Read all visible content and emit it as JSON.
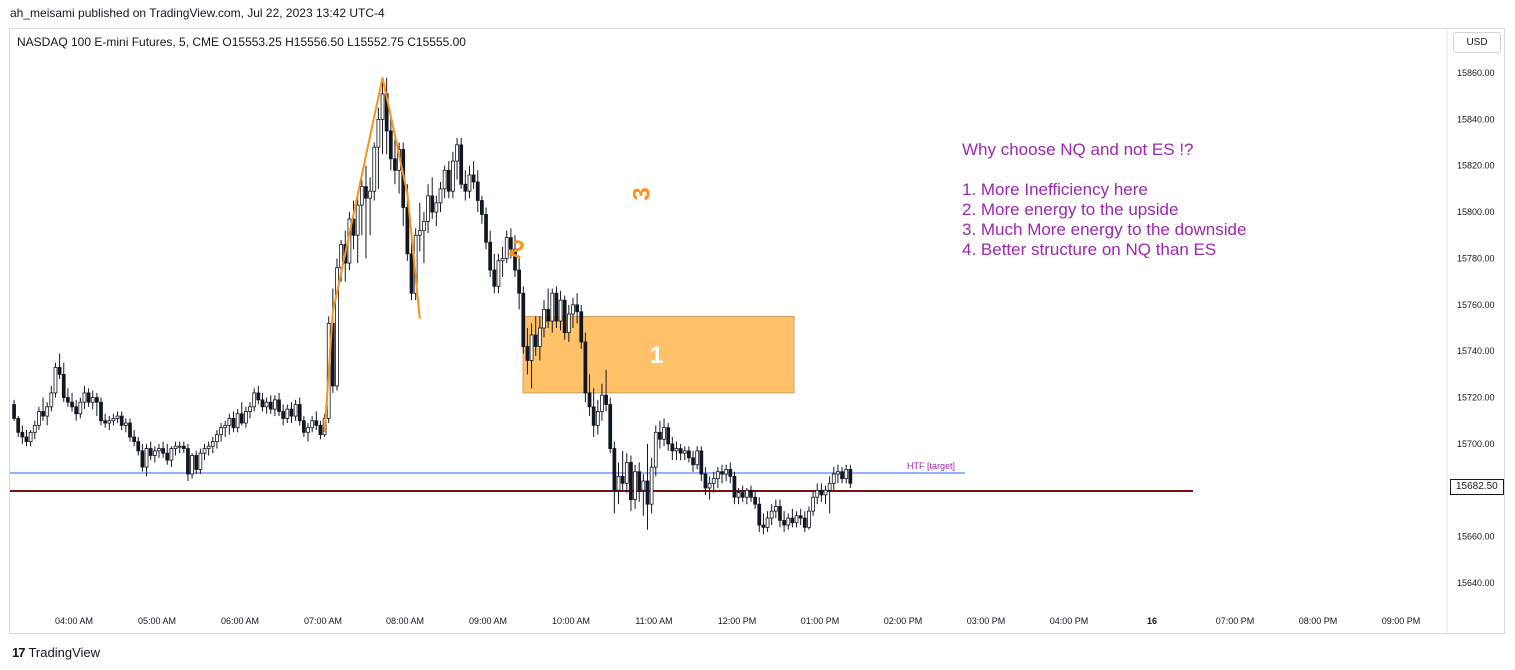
{
  "header": {
    "published_by": "ah_meisami published on TradingView.com, Jul 22, 2023 13:42 UTC-4"
  },
  "symbol_line": "NASDAQ 100 E-mini Futures, 5, CME  O15553.25  H15556.50  L15552.75  C15555.00",
  "currency_label": "USD",
  "footer": {
    "brand": "TradingView",
    "logo_icon": "tradingview-logo-icon"
  },
  "annotations": {
    "note_title": "Why choose NQ and not ES !?",
    "note_items": [
      "1. More Inefficiency here",
      "2. More energy to the upside",
      "3. Much More energy to the downside",
      "4. Better structure on NQ than ES"
    ],
    "htf_label": "HTF [target]",
    "zone_label": "1",
    "wave_label_2": "2",
    "wave_label_3": "3",
    "last_price_tag": "15682.50"
  },
  "colors": {
    "bull_body": "#ffffff",
    "bear_body": "#131722",
    "wick": "#131722",
    "zone_fill": "#ffb74d",
    "annotation_orange": "#f7931a",
    "note_purple": "#9c27b0",
    "htf_line": "#2962ff",
    "target_line": "#7b1113"
  },
  "chart_data": {
    "type": "candlestick",
    "timeframe": "5",
    "ylim": [
      15630,
      15870
    ],
    "y_ticks": [
      "15860.00",
      "15840.00",
      "15820.00",
      "15800.00",
      "15780.00",
      "15760.00",
      "15740.00",
      "15720.00",
      "15700.00",
      "15680.00",
      "15660.00",
      "15640.00"
    ],
    "x_ticks": [
      "04:00 AM",
      "05:00 AM",
      "06:00 AM",
      "07:00 AM",
      "08:00 AM",
      "09:00 AM",
      "10:00 AM",
      "11:00 AM",
      "12:00 PM",
      "01:00 PM",
      "02:00 PM",
      "03:00 PM",
      "04:00 PM",
      "16",
      "07:00 PM",
      "08:00 PM",
      "09:00 PM"
    ],
    "x_start_label": "03:15 AM",
    "bar_minutes": 5,
    "candles": [
      [
        15717,
        15719,
        15710,
        15711
      ],
      [
        15711,
        15712,
        15703,
        15705
      ],
      [
        15705,
        15708,
        15700,
        15703
      ],
      [
        15703,
        15706,
        15699,
        15701
      ],
      [
        15701,
        15706,
        15699,
        15705
      ],
      [
        15705,
        15710,
        15702,
        15708
      ],
      [
        15708,
        15716,
        15706,
        15714
      ],
      [
        15714,
        15720,
        15710,
        15712
      ],
      [
        15712,
        15718,
        15708,
        15716
      ],
      [
        15716,
        15725,
        15714,
        15722
      ],
      [
        15722,
        15735,
        15720,
        15733
      ],
      [
        15733,
        15739,
        15728,
        15730
      ],
      [
        15730,
        15735,
        15718,
        15720
      ],
      [
        15720,
        15724,
        15716,
        15718
      ],
      [
        15718,
        15722,
        15714,
        15716
      ],
      [
        15716,
        15719,
        15710,
        15713
      ],
      [
        15713,
        15720,
        15711,
        15718
      ],
      [
        15718,
        15725,
        15715,
        15722
      ],
      [
        15722,
        15724,
        15716,
        15718
      ],
      [
        15718,
        15723,
        15715,
        15720
      ],
      [
        15720,
        15722,
        15712,
        15718
      ],
      [
        15718,
        15720,
        15708,
        15710
      ],
      [
        15710,
        15713,
        15707,
        15709
      ],
      [
        15709,
        15712,
        15706,
        15710
      ],
      [
        15710,
        15713,
        15708,
        15711
      ],
      [
        15711,
        15714,
        15709,
        15712
      ],
      [
        15712,
        15714,
        15706,
        15708
      ],
      [
        15708,
        15711,
        15705,
        15709
      ],
      [
        15709,
        15711,
        15701,
        15703
      ],
      [
        15703,
        15706,
        15699,
        15701
      ],
      [
        15701,
        15703,
        15695,
        15697
      ],
      [
        15697,
        15700,
        15688,
        15690
      ],
      [
        15690,
        15700,
        15686,
        15698
      ],
      [
        15698,
        15701,
        15693,
        15695
      ],
      [
        15695,
        15699,
        15692,
        15697
      ],
      [
        15697,
        15700,
        15694,
        15698
      ],
      [
        15698,
        15701,
        15694,
        15696
      ],
      [
        15696,
        15700,
        15691,
        15693
      ],
      [
        15693,
        15699,
        15690,
        15698
      ],
      [
        15698,
        15701,
        15695,
        15699
      ],
      [
        15699,
        15701,
        15696,
        15699
      ],
      [
        15699,
        15701,
        15696,
        15698
      ],
      [
        15698,
        15700,
        15684,
        15687
      ],
      [
        15687,
        15696,
        15685,
        15695
      ],
      [
        15695,
        15697,
        15687,
        15689
      ],
      [
        15689,
        15698,
        15687,
        15696
      ],
      [
        15696,
        15700,
        15693,
        15698
      ],
      [
        15698,
        15701,
        15695,
        15699
      ],
      [
        15699,
        15703,
        15696,
        15701
      ],
      [
        15701,
        15706,
        15698,
        15704
      ],
      [
        15704,
        15709,
        15701,
        15707
      ],
      [
        15707,
        15710,
        15703,
        15708
      ],
      [
        15708,
        15713,
        15704,
        15711
      ],
      [
        15711,
        15714,
        15705,
        15707
      ],
      [
        15707,
        15715,
        15705,
        15713
      ],
      [
        15713,
        15718,
        15708,
        15709
      ],
      [
        15709,
        15716,
        15707,
        15714
      ],
      [
        15714,
        15718,
        15711,
        15716
      ],
      [
        15716,
        15724,
        15714,
        15722
      ],
      [
        15722,
        15725,
        15717,
        15719
      ],
      [
        15719,
        15722,
        15714,
        15716
      ],
      [
        15716,
        15720,
        15713,
        15718
      ],
      [
        15718,
        15721,
        15713,
        15715
      ],
      [
        15715,
        15721,
        15712,
        15719
      ],
      [
        15719,
        15722,
        15712,
        15714
      ],
      [
        15714,
        15717,
        15708,
        15711
      ],
      [
        15711,
        15717,
        15709,
        15715
      ],
      [
        15715,
        15718,
        15709,
        15712
      ],
      [
        15712,
        15719,
        15710,
        15717
      ],
      [
        15717,
        15720,
        15708,
        15710
      ],
      [
        15710,
        15712,
        15703,
        15705
      ],
      [
        15705,
        15709,
        15701,
        15707
      ],
      [
        15707,
        15712,
        15705,
        15710
      ],
      [
        15710,
        15714,
        15706,
        15708
      ],
      [
        15708,
        15710,
        15702,
        15704
      ],
      [
        15704,
        15713,
        15703,
        15711
      ],
      [
        15711,
        15755,
        15709,
        15752
      ],
      [
        15752,
        15767,
        15722,
        15725
      ],
      [
        15725,
        15780,
        15723,
        15776
      ],
      [
        15776,
        15788,
        15770,
        15786
      ],
      [
        15786,
        15792,
        15770,
        15778
      ],
      [
        15778,
        15800,
        15775,
        15797
      ],
      [
        15797,
        15805,
        15784,
        15790
      ],
      [
        15790,
        15808,
        15778,
        15803
      ],
      [
        15803,
        15814,
        15790,
        15811
      ],
      [
        15811,
        15820,
        15780,
        15806
      ],
      [
        15806,
        15815,
        15790,
        15809
      ],
      [
        15809,
        15830,
        15805,
        15828
      ],
      [
        15828,
        15845,
        15810,
        15840
      ],
      [
        15840,
        15856,
        15825,
        15851
      ],
      [
        15851,
        15858,
        15825,
        15835
      ],
      [
        15835,
        15842,
        15818,
        15823
      ],
      [
        15823,
        15832,
        15812,
        15818
      ],
      [
        15818,
        15830,
        15808,
        15827
      ],
      [
        15827,
        15830,
        15794,
        15802
      ],
      [
        15802,
        15812,
        15779,
        15782
      ],
      [
        15782,
        15787,
        15762,
        15765
      ],
      [
        15765,
        15793,
        15762,
        15790
      ],
      [
        15790,
        15804,
        15783,
        15792
      ],
      [
        15792,
        15800,
        15778,
        15796
      ],
      [
        15796,
        15812,
        15791,
        15807
      ],
      [
        15807,
        15815,
        15797,
        15800
      ],
      [
        15800,
        15807,
        15794,
        15804
      ],
      [
        15804,
        15813,
        15800,
        15810
      ],
      [
        15810,
        15820,
        15806,
        15818
      ],
      [
        15818,
        15822,
        15806,
        15809
      ],
      [
        15809,
        15826,
        15806,
        15822
      ],
      [
        15822,
        15832,
        15814,
        15829
      ],
      [
        15829,
        15832,
        15810,
        15812
      ],
      [
        15812,
        15818,
        15805,
        15809
      ],
      [
        15809,
        15820,
        15806,
        15816
      ],
      [
        15816,
        15822,
        15810,
        15813
      ],
      [
        15813,
        15818,
        15800,
        15805
      ],
      [
        15805,
        15807,
        15795,
        15799
      ],
      [
        15799,
        15802,
        15784,
        15787
      ],
      [
        15787,
        15792,
        15772,
        15775
      ],
      [
        15775,
        15782,
        15765,
        15768
      ],
      [
        15768,
        15782,
        15765,
        15779
      ],
      [
        15779,
        15785,
        15772,
        15780
      ],
      [
        15780,
        15792,
        15778,
        15789
      ],
      [
        15789,
        15793,
        15780,
        15784
      ],
      [
        15784,
        15790,
        15772,
        15775
      ],
      [
        15775,
        15781,
        15758,
        15765
      ],
      [
        15765,
        15768,
        15739,
        15742
      ],
      [
        15742,
        15750,
        15730,
        15736
      ],
      [
        15736,
        15752,
        15724,
        15747
      ],
      [
        15747,
        15755,
        15738,
        15742
      ],
      [
        15742,
        15755,
        15736,
        15750
      ],
      [
        15750,
        15762,
        15746,
        15758
      ],
      [
        15758,
        15767,
        15750,
        15753
      ],
      [
        15753,
        15767,
        15748,
        15765
      ],
      [
        15765,
        15768,
        15750,
        15753
      ],
      [
        15753,
        15766,
        15749,
        15762
      ],
      [
        15762,
        15764,
        15745,
        15748
      ],
      [
        15748,
        15760,
        15744,
        15756
      ],
      [
        15756,
        15763,
        15750,
        15760
      ],
      [
        15760,
        15765,
        15752,
        15757
      ],
      [
        15757,
        15760,
        15741,
        15744
      ],
      [
        15744,
        15748,
        15718,
        15722
      ],
      [
        15722,
        15730,
        15712,
        15716
      ],
      [
        15716,
        15724,
        15703,
        15708
      ],
      [
        15708,
        15719,
        15704,
        15714
      ],
      [
        15714,
        15726,
        15710,
        15721
      ],
      [
        15721,
        15732,
        15714,
        15717
      ],
      [
        15717,
        15720,
        15696,
        15698
      ],
      [
        15698,
        15701,
        15670,
        15680
      ],
      [
        15680,
        15692,
        15674,
        15686
      ],
      [
        15686,
        15697,
        15680,
        15683
      ],
      [
        15683,
        15696,
        15679,
        15692
      ],
      [
        15692,
        15695,
        15671,
        15676
      ],
      [
        15676,
        15691,
        15672,
        15688
      ],
      [
        15688,
        15692,
        15675,
        15680
      ],
      [
        15680,
        15687,
        15669,
        15684
      ],
      [
        15684,
        15700,
        15663,
        15674
      ],
      [
        15674,
        15694,
        15670,
        15690
      ],
      [
        15690,
        15708,
        15686,
        15705
      ],
      [
        15705,
        15710,
        15698,
        15702
      ],
      [
        15702,
        15711,
        15699,
        15707
      ],
      [
        15707,
        15709,
        15697,
        15700
      ],
      [
        15700,
        15703,
        15693,
        15697
      ],
      [
        15697,
        15701,
        15693,
        15698
      ],
      [
        15698,
        15700,
        15693,
        15696
      ],
      [
        15696,
        15699,
        15693,
        15697
      ],
      [
        15697,
        15699,
        15692,
        15694
      ],
      [
        15694,
        15697,
        15688,
        15691
      ],
      [
        15691,
        15699,
        15689,
        15697
      ],
      [
        15697,
        15699,
        15684,
        15687
      ],
      [
        15687,
        15690,
        15678,
        15681
      ],
      [
        15681,
        15686,
        15676,
        15683
      ],
      [
        15683,
        15688,
        15679,
        15685
      ],
      [
        15685,
        15690,
        15681,
        15688
      ],
      [
        15688,
        15691,
        15683,
        15687
      ],
      [
        15687,
        15691,
        15684,
        15689
      ],
      [
        15689,
        15692,
        15683,
        15686
      ],
      [
        15686,
        15688,
        15674,
        15677
      ],
      [
        15677,
        15681,
        15674,
        15679
      ],
      [
        15679,
        15682,
        15675,
        15677
      ],
      [
        15677,
        15681,
        15674,
        15680
      ],
      [
        15680,
        15682,
        15675,
        15677
      ],
      [
        15677,
        15680,
        15672,
        15674
      ],
      [
        15674,
        15677,
        15662,
        15665
      ],
      [
        15665,
        15670,
        15661,
        15664
      ],
      [
        15664,
        15671,
        15662,
        15668
      ],
      [
        15668,
        15674,
        15665,
        15671
      ],
      [
        15671,
        15676,
        15668,
        15673
      ],
      [
        15673,
        15676,
        15664,
        15667
      ],
      [
        15667,
        15671,
        15662,
        15665
      ],
      [
        15665,
        15670,
        15663,
        15668
      ],
      [
        15668,
        15672,
        15664,
        15666
      ],
      [
        15666,
        15671,
        15664,
        15669
      ],
      [
        15669,
        15672,
        15665,
        15668
      ],
      [
        15668,
        15671,
        15662,
        15664
      ],
      [
        15664,
        15673,
        15663,
        15671
      ],
      [
        15671,
        15680,
        15669,
        15677
      ],
      [
        15677,
        15683,
        15674,
        15680
      ],
      [
        15680,
        15683,
        15675,
        15678
      ],
      [
        15678,
        15682,
        15674,
        15680
      ],
      [
        15680,
        15686,
        15670,
        15683
      ],
      [
        15683,
        15690,
        15680,
        15687
      ],
      [
        15687,
        15691,
        15683,
        15688
      ],
      [
        15688,
        15690,
        15683,
        15685
      ],
      [
        15685,
        15691,
        15683,
        15689
      ],
      [
        15689,
        15691,
        15681,
        15683
      ]
    ],
    "htf_target_level": 15687.5,
    "target_line_level": 15679.5,
    "demand_zone": {
      "x_start_bar": 76,
      "x_end_bar": 129,
      "y_low": 15722,
      "y_high": 15755
    },
    "wave_path": [
      [
        75,
        15705
      ],
      [
        77,
        15757
      ],
      [
        89,
        15858
      ],
      [
        95,
        15808
      ],
      [
        98,
        15754
      ]
    ]
  }
}
